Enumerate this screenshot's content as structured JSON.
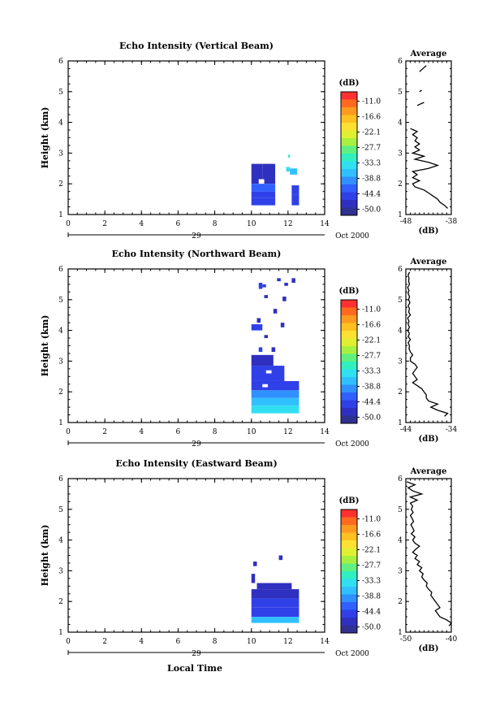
{
  "figure": {
    "xlabel": "Local Time",
    "date_label": "Oct 2000",
    "day_label": "29",
    "colorbar_unit": "(dB)",
    "colorbar_ticks": [
      "-11.0",
      "-16.6",
      "-22.1",
      "-27.7",
      "-33.3",
      "-38.8",
      "-44.4",
      "-50.0"
    ],
    "colorbar_colors": [
      "#ff3030",
      "#ff6a20",
      "#ff9a20",
      "#ffc020",
      "#ffe030",
      "#e0f030",
      "#a8f040",
      "#60f080",
      "#30f0c0",
      "#30e0f0",
      "#30c0ff",
      "#3090ff",
      "#3060ff",
      "#3040e8",
      "#3030c0",
      "#303090"
    ]
  },
  "chart_data": [
    {
      "type": "heatmap",
      "title": "Echo Intensity (Vertical Beam)",
      "ylabel": "Height (km)",
      "xlim": [
        0,
        14
      ],
      "ylim": [
        1,
        6
      ],
      "xticks": [
        "0",
        "2",
        "4",
        "6",
        "8",
        "10",
        "12",
        "14"
      ],
      "yticks": [
        "1",
        "2",
        "3",
        "4",
        "5",
        "6"
      ],
      "cells": [
        {
          "x0": 10,
          "x1": 10.6,
          "y0": 2.0,
          "y1": 2.65,
          "value": -48
        },
        {
          "x0": 10.6,
          "x1": 11.3,
          "y0": 2.0,
          "y1": 2.65,
          "value": -48
        },
        {
          "x0": 10.4,
          "x1": 10.7,
          "y0": 2.0,
          "y1": 2.15,
          "value": -5
        },
        {
          "x0": 10,
          "x1": 11.3,
          "y0": 1.75,
          "y1": 2.0,
          "value": -42
        },
        {
          "x0": 10,
          "x1": 11.3,
          "y0": 1.55,
          "y1": 1.75,
          "value": -46
        },
        {
          "x0": 10,
          "x1": 11.3,
          "y0": 1.3,
          "y1": 1.55,
          "value": -44
        },
        {
          "x0": 11.9,
          "x1": 12.1,
          "y0": 2.4,
          "y1": 2.55,
          "value": -35
        },
        {
          "x0": 12.1,
          "x1": 12.5,
          "y0": 2.3,
          "y1": 2.5,
          "value": -38
        },
        {
          "x0": 12.2,
          "x1": 12.6,
          "y0": 1.65,
          "y1": 1.95,
          "value": -46
        },
        {
          "x0": 12.2,
          "x1": 12.6,
          "y0": 1.3,
          "y1": 1.65,
          "value": -44
        },
        {
          "x0": 12.0,
          "x1": 12.1,
          "y0": 2.85,
          "y1": 2.95,
          "value": -30
        }
      ],
      "profile": {
        "xlim": [
          -48,
          -38
        ],
        "xticks": [
          "-48",
          "-38"
        ],
        "xlabel": "(dB)",
        "title": "Average",
        "h": [
          1.2,
          1.3,
          1.4,
          1.5,
          1.6,
          1.7,
          1.8,
          1.9,
          2.0,
          2.1,
          2.2,
          2.3,
          2.4,
          2.5,
          2.6,
          2.7,
          2.8,
          2.9,
          3.0,
          3.1,
          3.2,
          3.3,
          3.4,
          3.5,
          3.6,
          3.7,
          3.8
        ],
        "v": [
          -38.8,
          -39.5,
          -40.5,
          -41,
          -42,
          -43,
          -44,
          -46,
          -46.5,
          -45,
          -46.5,
          -45.5,
          -46.5,
          -43,
          -41,
          -43,
          -46,
          -44,
          -46.5,
          -45,
          -46,
          -45,
          -46,
          -45.5,
          -46.5,
          -45.5,
          -47
        ],
        "segments": [
          {
            "h": [
              4.55,
              4.65
            ],
            "v": [
              -45.5,
              -44
            ]
          },
          {
            "h": [
              5.0,
              5.05
            ],
            "v": [
              -45,
              -44.5
            ]
          },
          {
            "h": [
              5.65,
              5.85
            ],
            "v": [
              -45,
              -43.5
            ]
          }
        ]
      }
    },
    {
      "type": "heatmap",
      "title": "Echo Intensity (Northward Beam)",
      "ylabel": "Height (km)",
      "xlim": [
        0,
        14
      ],
      "ylim": [
        1,
        6
      ],
      "xticks": [
        "0",
        "2",
        "4",
        "6",
        "8",
        "10",
        "12",
        "14"
      ],
      "yticks": [
        "1",
        "2",
        "3",
        "4",
        "5",
        "6"
      ],
      "cells": [
        {
          "x0": 10,
          "x1": 12.6,
          "y0": 1.3,
          "y1": 1.55,
          "value": -33
        },
        {
          "x0": 10,
          "x1": 12.6,
          "y0": 1.55,
          "y1": 1.8,
          "value": -38
        },
        {
          "x0": 10,
          "x1": 12.6,
          "y0": 1.8,
          "y1": 2.05,
          "value": -40
        },
        {
          "x0": 10,
          "x1": 12.6,
          "y0": 2.05,
          "y1": 2.35,
          "value": -44
        },
        {
          "x0": 10,
          "x1": 11.8,
          "y0": 2.35,
          "y1": 2.85,
          "value": -46
        },
        {
          "x0": 10,
          "x1": 11.2,
          "y0": 2.85,
          "y1": 3.2,
          "value": -48
        },
        {
          "x0": 10.8,
          "x1": 11.1,
          "y0": 2.6,
          "y1": 2.7,
          "value": -5
        },
        {
          "x0": 10.6,
          "x1": 10.9,
          "y0": 2.15,
          "y1": 2.25,
          "value": -5
        },
        {
          "x0": 11.1,
          "x1": 11.3,
          "y0": 3.3,
          "y1": 3.45,
          "value": -48
        },
        {
          "x0": 10.4,
          "x1": 10.6,
          "y0": 3.3,
          "y1": 3.45,
          "value": -46
        },
        {
          "x0": 10.0,
          "x1": 10.6,
          "y0": 4.0,
          "y1": 4.2,
          "value": -46
        },
        {
          "x0": 10.3,
          "x1": 10.5,
          "y0": 4.25,
          "y1": 4.4,
          "value": -48
        },
        {
          "x0": 11.6,
          "x1": 11.8,
          "y0": 4.1,
          "y1": 4.25,
          "value": -48
        },
        {
          "x0": 10.7,
          "x1": 10.9,
          "y0": 3.75,
          "y1": 3.85,
          "value": -48
        },
        {
          "x0": 11.2,
          "x1": 11.4,
          "y0": 4.55,
          "y1": 4.7,
          "value": -48
        },
        {
          "x0": 11.7,
          "x1": 11.9,
          "y0": 4.95,
          "y1": 5.1,
          "value": -48
        },
        {
          "x0": 10.7,
          "x1": 10.9,
          "y0": 5.05,
          "y1": 5.15,
          "value": -48
        },
        {
          "x0": 10.4,
          "x1": 10.6,
          "y0": 5.35,
          "y1": 5.55,
          "value": -46
        },
        {
          "x0": 10.6,
          "x1": 10.8,
          "y0": 5.4,
          "y1": 5.5,
          "value": -46
        },
        {
          "x0": 11.4,
          "x1": 11.6,
          "y0": 5.6,
          "y1": 5.7,
          "value": -48
        },
        {
          "x0": 11.8,
          "x1": 12.0,
          "y0": 5.45,
          "y1": 5.55,
          "value": -48
        },
        {
          "x0": 12.2,
          "x1": 12.4,
          "y0": 5.55,
          "y1": 5.7,
          "value": -48
        }
      ],
      "profile": {
        "xlim": [
          -44,
          -34
        ],
        "xticks": [
          "-44",
          "-34"
        ],
        "xlabel": "(dB)",
        "title": "Average",
        "h": [
          1.2,
          1.3,
          1.4,
          1.5,
          1.6,
          1.7,
          1.8,
          1.9,
          2.0,
          2.1,
          2.2,
          2.3,
          2.4,
          2.5,
          2.6,
          2.7,
          2.8,
          2.9,
          3.0,
          3.1,
          3.2,
          3.3,
          3.4,
          3.5,
          3.6,
          3.7,
          3.8,
          3.9,
          4.0,
          4.1,
          4.2,
          4.3,
          4.4,
          4.5,
          4.6,
          4.7,
          4.8,
          4.9,
          5.0,
          5.1,
          5.2,
          5.3,
          5.4,
          5.5,
          5.6,
          5.7,
          5.8,
          5.9
        ],
        "v": [
          -35.5,
          -34.8,
          -37,
          -38.5,
          -37,
          -39,
          -39.5,
          -39.5,
          -40,
          -40.5,
          -41.5,
          -42.5,
          -41.5,
          -42,
          -42.5,
          -42,
          -41.5,
          -42,
          -43,
          -43,
          -42.5,
          -43,
          -43.3,
          -43.2,
          -43.5,
          -43,
          -43.5,
          -43.2,
          -43.6,
          -43.2,
          -43.5,
          -43.3,
          -43.6,
          -43,
          -43.4,
          -43.2,
          -43.5,
          -43.1,
          -43.4,
          -43.2,
          -43.5,
          -43.3,
          -43.6,
          -43.2,
          -43.4,
          -43.3,
          -43.5,
          -43.2
        ],
        "segments": []
      }
    },
    {
      "type": "heatmap",
      "title": "Echo Intensity (Eastward Beam)",
      "ylabel": "Height (km)",
      "xlim": [
        0,
        14
      ],
      "ylim": [
        1,
        6
      ],
      "xticks": [
        "0",
        "2",
        "4",
        "6",
        "8",
        "10",
        "12",
        "14"
      ],
      "yticks": [
        "1",
        "2",
        "3",
        "4",
        "5",
        "6"
      ],
      "cells": [
        {
          "x0": 10,
          "x1": 12.6,
          "y0": 1.3,
          "y1": 1.5,
          "value": -38
        },
        {
          "x0": 10,
          "x1": 12.6,
          "y0": 1.5,
          "y1": 1.8,
          "value": -44
        },
        {
          "x0": 10,
          "x1": 12.6,
          "y0": 1.8,
          "y1": 2.1,
          "value": -46
        },
        {
          "x0": 10,
          "x1": 12.6,
          "y0": 2.1,
          "y1": 2.4,
          "value": -48
        },
        {
          "x0": 10.3,
          "x1": 12.2,
          "y0": 2.4,
          "y1": 2.6,
          "value": -48
        },
        {
          "x0": 10.0,
          "x1": 10.2,
          "y0": 2.6,
          "y1": 2.9,
          "value": -48
        },
        {
          "x0": 10.1,
          "x1": 10.3,
          "y0": 3.15,
          "y1": 3.3,
          "value": -48
        },
        {
          "x0": 11.5,
          "x1": 11.7,
          "y0": 3.35,
          "y1": 3.5,
          "value": -48
        }
      ],
      "profile": {
        "xlim": [
          -50,
          -40
        ],
        "xticks": [
          "-50",
          "-40"
        ],
        "xlabel": "(dB)",
        "title": "Average",
        "h": [
          1.2,
          1.3,
          1.4,
          1.5,
          1.6,
          1.7,
          1.8,
          1.9,
          2.0,
          2.1,
          2.2,
          2.3,
          2.4,
          2.5,
          2.6,
          2.7,
          2.8,
          2.9,
          3.0,
          3.1,
          3.2,
          3.3,
          3.4,
          3.5,
          3.6,
          3.7,
          3.8,
          3.9,
          4.0,
          4.1,
          4.2,
          4.3,
          4.4,
          4.5,
          4.6,
          4.7,
          4.8,
          4.9,
          5.0,
          5.1,
          5.2,
          5.3,
          5.4,
          5.5,
          5.6,
          5.7,
          5.8,
          5.9
        ],
        "v": [
          -40.5,
          -40,
          -41,
          -42.5,
          -43,
          -43.5,
          -42.5,
          -43,
          -43.5,
          -44,
          -44.5,
          -44.3,
          -45,
          -45.5,
          -45.3,
          -46,
          -46.5,
          -46.2,
          -47,
          -46.5,
          -47.5,
          -47,
          -48,
          -47.5,
          -48.5,
          -47.8,
          -47,
          -48,
          -48.5,
          -48,
          -48.8,
          -48.2,
          -48.5,
          -48.9,
          -48.3,
          -48.6,
          -49,
          -48.4,
          -48.8,
          -48.5,
          -49,
          -47.5,
          -49,
          -46.5,
          -48.5,
          -49.5,
          -48,
          -49.8
        ],
        "segments": []
      }
    }
  ]
}
